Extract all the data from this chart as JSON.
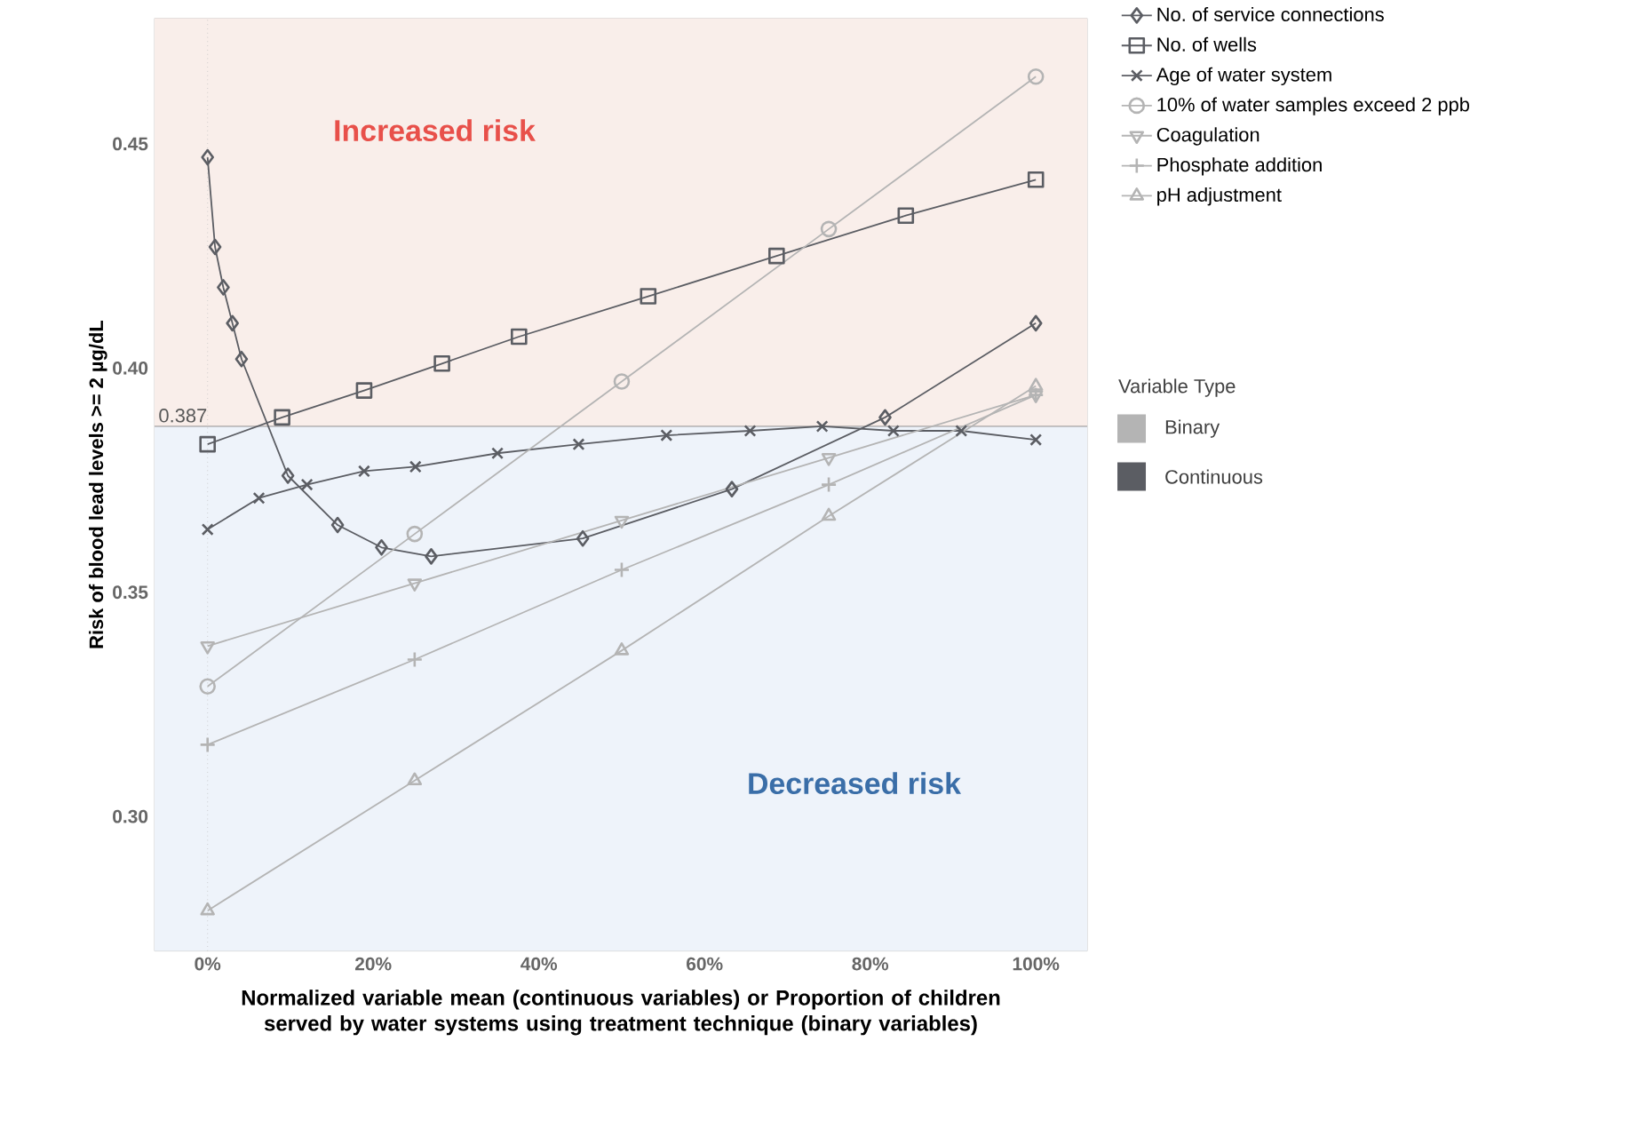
{
  "chart_data": {
    "type": "line",
    "xlabel": "Normalized variable mean (continuous variables) or Proportion of children served by water systems using treatment technique (binary variables)",
    "ylabel": "Risk of blood lead levels >= 2 µg/dL",
    "legend_title": "Variable Type",
    "annotations": [
      "Binary",
      "Continuous"
    ],
    "xlim": [
      -6.4,
      106.2
    ],
    "ylim": [
      0.27,
      0.478
    ],
    "xticks": [
      {
        "value": 0,
        "label": "0%"
      },
      {
        "value": 20,
        "label": "20%"
      },
      {
        "value": 40,
        "label": "40%"
      },
      {
        "value": 60,
        "label": "60%"
      },
      {
        "value": 80,
        "label": "80%"
      },
      {
        "value": 100,
        "label": "100%"
      }
    ],
    "yticks": [
      {
        "value": 0.3,
        "label": "0.30"
      },
      {
        "value": 0.35,
        "label": "0.35"
      },
      {
        "value": 0.4,
        "label": "0.40"
      },
      {
        "value": 0.45,
        "label": "0.45"
      }
    ],
    "legend": "right",
    "ref_lines": [
      {
        "axis": "y",
        "value": 0.387,
        "label": "0.387",
        "color": "#777777",
        "line_style": "solid"
      },
      {
        "axis": "x",
        "value": 0,
        "color": "#bbbbbb",
        "line_style": "dotted"
      }
    ],
    "bands": [
      {
        "axis": "y",
        "from": 0.387,
        "to": 0.478,
        "label": "Increased risk",
        "color": "#f9eeea"
      },
      {
        "axis": "y",
        "from": 0.27,
        "to": 0.387,
        "label": "Decreased risk",
        "color": "#eef3fa"
      }
    ],
    "series": [
      {
        "name": "No. of service connections",
        "color": "#5b5d63",
        "marker": "diamond",
        "x": [
          0,
          0.9,
          1.9,
          3.0,
          4.1,
          9.7,
          15.7,
          21.0,
          27.0,
          45.3,
          63.3,
          81.8,
          100
        ],
        "values": [
          0.447,
          0.427,
          0.418,
          0.41,
          0.402,
          0.376,
          0.365,
          0.36,
          0.358,
          0.362,
          0.373,
          0.389,
          0.41
        ]
      },
      {
        "name": "No. of wells",
        "color": "#5b5d63",
        "marker": "square",
        "x": [
          0,
          9,
          18.9,
          28.3,
          37.6,
          53.2,
          68.7,
          84.3,
          100
        ],
        "values": [
          0.383,
          0.389,
          0.395,
          0.401,
          0.407,
          0.416,
          0.425,
          0.434,
          0.442
        ]
      },
      {
        "name": "Age of water system",
        "color": "#5b5d63",
        "marker": "cross",
        "x": [
          0,
          6.2,
          12,
          18.9,
          25.1,
          35,
          44.8,
          55.4,
          65.5,
          74.2,
          82.8,
          91,
          100
        ],
        "values": [
          0.364,
          0.371,
          0.374,
          0.377,
          0.378,
          0.381,
          0.383,
          0.385,
          0.386,
          0.387,
          0.386,
          0.386,
          0.384
        ]
      },
      {
        "name": "10% of water samples exceed 2 ppb",
        "color": "#b4b4b4",
        "marker": "circle",
        "x": [
          0,
          25,
          50,
          75,
          100
        ],
        "values": [
          0.329,
          0.363,
          0.397,
          0.431,
          0.465
        ]
      },
      {
        "name": "Coagulation",
        "color": "#b4b4b4",
        "marker": "triangle-down",
        "x": [
          0,
          25,
          50,
          75,
          100
        ],
        "values": [
          0.338,
          0.352,
          0.366,
          0.38,
          0.394
        ]
      },
      {
        "name": "Phosphate addition",
        "color": "#b4b4b4",
        "marker": "plus",
        "x": [
          0,
          25,
          50,
          75,
          100
        ],
        "values": [
          0.316,
          0.335,
          0.355,
          0.374,
          0.394
        ]
      },
      {
        "name": "pH adjustment",
        "color": "#b4b4b4",
        "marker": "triangle",
        "x": [
          0,
          25,
          50,
          75,
          100
        ],
        "values": [
          0.279,
          0.308,
          0.337,
          0.367,
          0.396
        ]
      }
    ]
  }
}
